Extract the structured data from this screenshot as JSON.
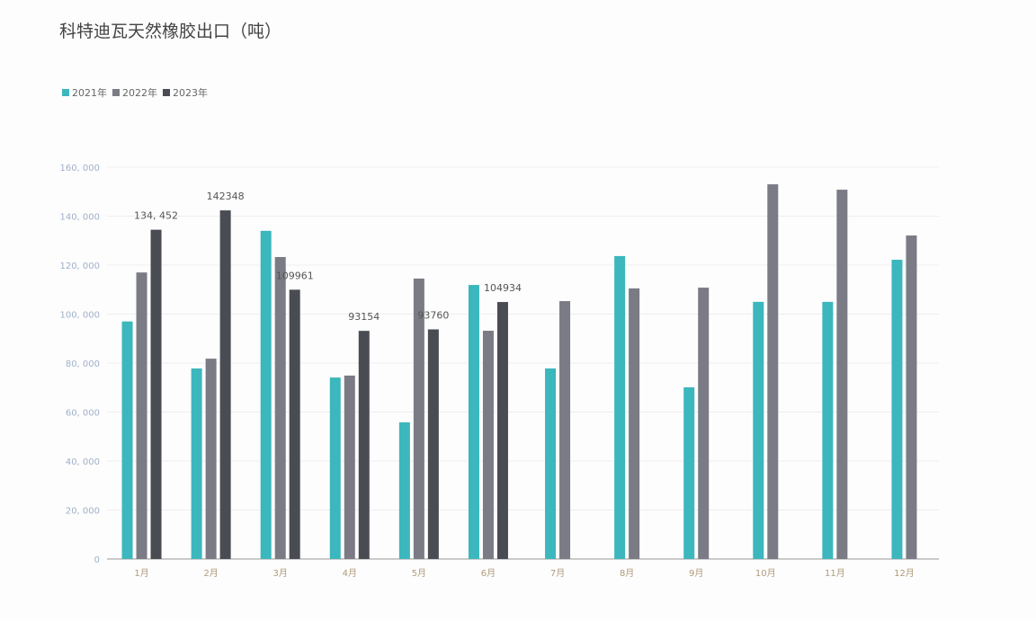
{
  "chart_data": {
    "type": "bar",
    "title": "科特迪瓦天然橡胶出口（吨）",
    "xlabel": "",
    "ylabel": "",
    "ylim": [
      0,
      160000
    ],
    "yticks": [
      "0",
      "20, 000",
      "40, 000",
      "60, 000",
      "80, 000",
      "100, 000",
      "120, 000",
      "140, 000",
      "160, 000"
    ],
    "grid": true,
    "legend_position": "top-left",
    "categories": [
      "1月",
      "2月",
      "3月",
      "4月",
      "5月",
      "6月",
      "7月",
      "8月",
      "9月",
      "10月",
      "11月",
      "12月"
    ],
    "series": [
      {
        "name": "2021年",
        "color": "#3bb7bd",
        "values": [
          97000,
          77800,
          134000,
          74100,
          55800,
          111900,
          77800,
          123700,
          70100,
          105000,
          105000,
          122200
        ]
      },
      {
        "name": "2022年",
        "color": "#7a7b84",
        "values": [
          117000,
          81800,
          123300,
          74900,
          114500,
          93200,
          105300,
          110500,
          110800,
          153000,
          150800,
          132100
        ]
      },
      {
        "name": "2023年",
        "color": "#4a4c54",
        "values": [
          134452,
          142348,
          109961,
          93154,
          93760,
          104934,
          null,
          null,
          null,
          null,
          null,
          null
        ]
      }
    ],
    "data_labels": [
      "134, 452",
      "142348",
      "109961",
      "93154",
      "93760",
      "104934"
    ]
  }
}
